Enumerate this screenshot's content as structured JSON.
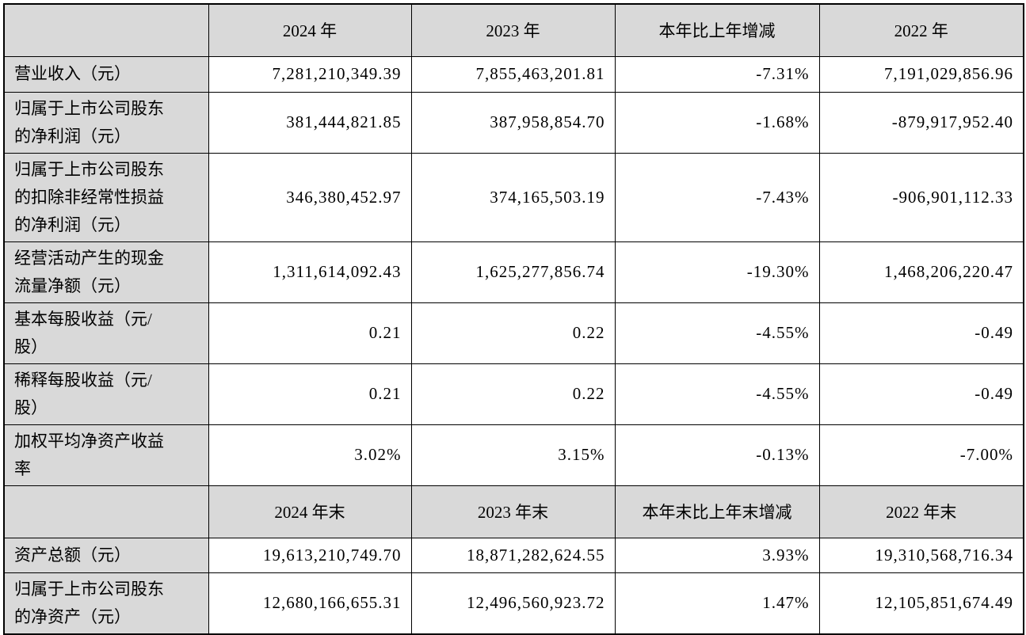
{
  "colors": {
    "header_background": "#d9d9d9",
    "label_column_background": "#d9d9d9",
    "border": "#000000",
    "text": "#000000",
    "cell_background": "#ffffff"
  },
  "table": {
    "sections": [
      {
        "headers": [
          "2024 年",
          "2023 年",
          "本年比上年增减",
          "2022 年"
        ],
        "rows": [
          {
            "label": "营业收入（元）",
            "values": [
              "7,281,210,349.39",
              "7,855,463,201.81",
              "-7.31%",
              "7,191,029,856.96"
            ]
          },
          {
            "label": "归属于上市公司股东\n的净利润（元）",
            "values": [
              "381,444,821.85",
              "387,958,854.70",
              "-1.68%",
              "-879,917,952.40"
            ]
          },
          {
            "label": "归属于上市公司股东\n的扣除非经常性损益\n的净利润（元）",
            "values": [
              "346,380,452.97",
              "374,165,503.19",
              "-7.43%",
              "-906,901,112.33"
            ]
          },
          {
            "label": "经营活动产生的现金\n流量净额（元）",
            "values": [
              "1,311,614,092.43",
              "1,625,277,856.74",
              "-19.30%",
              "1,468,206,220.47"
            ]
          },
          {
            "label": "基本每股收益（元/\n股）",
            "values": [
              "0.21",
              "0.22",
              "-4.55%",
              "-0.49"
            ]
          },
          {
            "label": "稀释每股收益（元/\n股）",
            "values": [
              "0.21",
              "0.22",
              "-4.55%",
              "-0.49"
            ]
          },
          {
            "label": "加权平均净资产收益\n率",
            "values": [
              "3.02%",
              "3.15%",
              "-0.13%",
              "-7.00%"
            ]
          }
        ]
      },
      {
        "headers": [
          "2024 年末",
          "2023 年末",
          "本年末比上年末增减",
          "2022 年末"
        ],
        "rows": [
          {
            "label": "资产总额（元）",
            "values": [
              "19,613,210,749.70",
              "18,871,282,624.55",
              "3.93%",
              "19,310,568,716.34"
            ]
          },
          {
            "label": "归属于上市公司股东\n的净资产（元）",
            "values": [
              "12,680,166,655.31",
              "12,496,560,923.72",
              "1.47%",
              "12,105,851,674.49"
            ]
          }
        ]
      }
    ]
  }
}
